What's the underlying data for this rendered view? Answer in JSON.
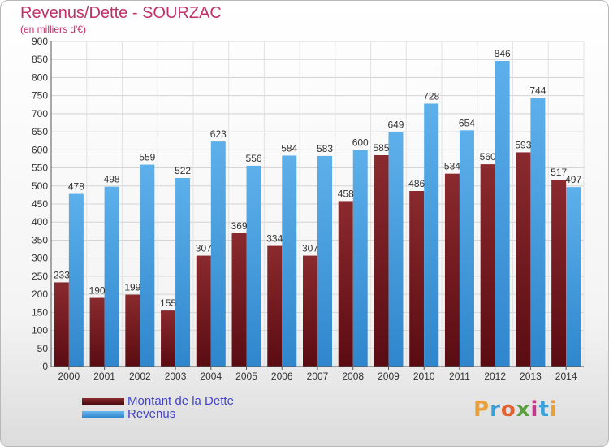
{
  "title": "Revenus/Dette - SOURZAC",
  "subtitle": "(en milliers d'€)",
  "colors": {
    "dette": "#7a1f25",
    "revenus": "#4fa3e0",
    "title": "#c0306a",
    "legend_text": "#4444cc"
  },
  "legend": [
    {
      "label": "Montant de la Dette",
      "color_key": "dette"
    },
    {
      "label": "Revenus",
      "color_key": "revenus"
    }
  ],
  "logo": {
    "letters": [
      "P",
      "r",
      "o",
      "x",
      "i",
      "t",
      "i"
    ],
    "colors": [
      "#e8a13a",
      "#3aa0d8",
      "#e06030",
      "#5aa040",
      "#c03a8a",
      "#3aa0d8",
      "#e8a13a"
    ]
  },
  "chart_data": {
    "type": "bar",
    "categories": [
      "2000",
      "2001",
      "2002",
      "2003",
      "2004",
      "2005",
      "2006",
      "2007",
      "2008",
      "2009",
      "2010",
      "2011",
      "2012",
      "2013",
      "2014"
    ],
    "series": [
      {
        "name": "Montant de la Dette",
        "values": [
          233,
          190,
          199,
          155,
          307,
          369,
          334,
          307,
          458,
          585,
          486,
          534,
          560,
          593,
          517
        ]
      },
      {
        "name": "Revenus",
        "values": [
          478,
          498,
          559,
          522,
          623,
          556,
          584,
          583,
          600,
          649,
          728,
          654,
          846,
          744,
          497
        ]
      }
    ],
    "ylim": [
      0,
      900
    ],
    "ytick_step": 50,
    "grid": true
  }
}
